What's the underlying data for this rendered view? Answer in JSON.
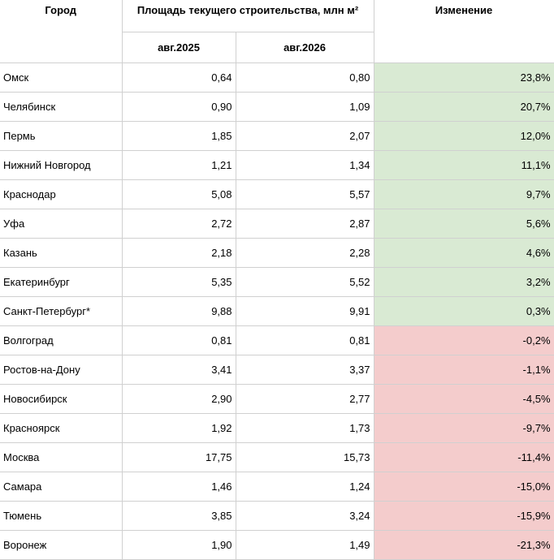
{
  "headers": {
    "city": "Город",
    "area": "Площадь текущего строительства, млн м²",
    "change": "Изменение",
    "period_a": "авг.2025",
    "period_b": "авг.2026"
  },
  "colors": {
    "positive": "#d9ead3",
    "negative": "#f4cccc"
  },
  "rows": [
    {
      "city": "Омск",
      "a": "0,64",
      "b": "0,80",
      "change": "23,8%",
      "sign": "pos"
    },
    {
      "city": "Челябинск",
      "a": "0,90",
      "b": "1,09",
      "change": "20,7%",
      "sign": "pos"
    },
    {
      "city": "Пермь",
      "a": "1,85",
      "b": "2,07",
      "change": "12,0%",
      "sign": "pos"
    },
    {
      "city": "Нижний Новгород",
      "a": "1,21",
      "b": "1,34",
      "change": "11,1%",
      "sign": "pos"
    },
    {
      "city": "Краснодар",
      "a": "5,08",
      "b": "5,57",
      "change": "9,7%",
      "sign": "pos"
    },
    {
      "city": "Уфа",
      "a": "2,72",
      "b": "2,87",
      "change": "5,6%",
      "sign": "pos"
    },
    {
      "city": "Казань",
      "a": "2,18",
      "b": "2,28",
      "change": "4,6%",
      "sign": "pos"
    },
    {
      "city": "Екатеринбург",
      "a": "5,35",
      "b": "5,52",
      "change": "3,2%",
      "sign": "pos"
    },
    {
      "city": "Санкт-Петербург*",
      "a": "9,88",
      "b": "9,91",
      "change": "0,3%",
      "sign": "pos"
    },
    {
      "city": "Волгоград",
      "a": "0,81",
      "b": "0,81",
      "change": "-0,2%",
      "sign": "neg"
    },
    {
      "city": "Ростов-на-Дону",
      "a": "3,41",
      "b": "3,37",
      "change": "-1,1%",
      "sign": "neg"
    },
    {
      "city": "Новосибирск",
      "a": "2,90",
      "b": "2,77",
      "change": "-4,5%",
      "sign": "neg"
    },
    {
      "city": "Красноярск",
      "a": "1,92",
      "b": "1,73",
      "change": "-9,7%",
      "sign": "neg"
    },
    {
      "city": "Москва",
      "a": "17,75",
      "b": "15,73",
      "change": "-11,4%",
      "sign": "neg"
    },
    {
      "city": "Самара",
      "a": "1,46",
      "b": "1,24",
      "change": "-15,0%",
      "sign": "neg"
    },
    {
      "city": "Тюмень",
      "a": "3,85",
      "b": "3,24",
      "change": "-15,9%",
      "sign": "neg"
    },
    {
      "city": "Воронеж",
      "a": "1,90",
      "b": "1,49",
      "change": "-21,3%",
      "sign": "neg"
    }
  ]
}
